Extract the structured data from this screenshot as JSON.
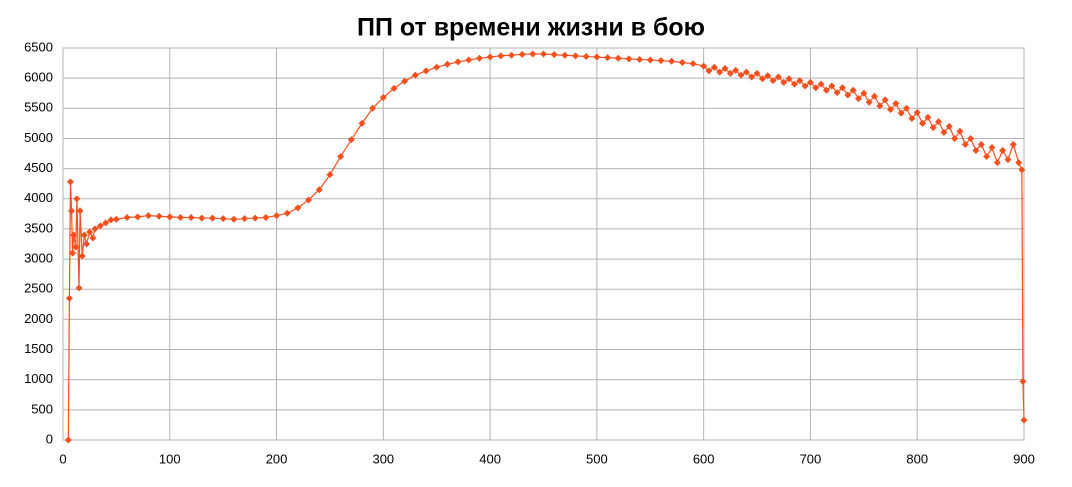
{
  "chart_data": {
    "type": "line",
    "title": "ПП от времени жизни в бою",
    "x": [
      5,
      6,
      7,
      8,
      9,
      10,
      12,
      13,
      15,
      16,
      18,
      20,
      22,
      25,
      28,
      30,
      35,
      40,
      45,
      50,
      60,
      70,
      80,
      90,
      100,
      110,
      120,
      130,
      140,
      150,
      160,
      170,
      180,
      190,
      200,
      210,
      220,
      230,
      240,
      250,
      260,
      270,
      280,
      290,
      300,
      310,
      320,
      330,
      340,
      350,
      360,
      370,
      380,
      390,
      400,
      410,
      420,
      430,
      440,
      450,
      460,
      470,
      480,
      490,
      500,
      510,
      520,
      530,
      540,
      550,
      560,
      570,
      580,
      590,
      600,
      605,
      610,
      615,
      620,
      625,
      630,
      635,
      640,
      645,
      650,
      655,
      660,
      665,
      670,
      675,
      680,
      685,
      690,
      695,
      700,
      705,
      710,
      715,
      720,
      725,
      730,
      735,
      740,
      745,
      750,
      755,
      760,
      765,
      770,
      775,
      780,
      785,
      790,
      795,
      800,
      805,
      810,
      815,
      820,
      825,
      830,
      835,
      840,
      845,
      850,
      855,
      860,
      865,
      870,
      875,
      880,
      885,
      890,
      895,
      898,
      899,
      900
    ],
    "series": [
      {
        "color": "#f5501e",
        "values": [
          0,
          2350,
          4280,
          3800,
          3100,
          3400,
          3200,
          4000,
          2520,
          3800,
          3050,
          3400,
          3250,
          3450,
          3350,
          3500,
          3550,
          3600,
          3650,
          3660,
          3690,
          3700,
          3720,
          3710,
          3700,
          3690,
          3690,
          3680,
          3680,
          3670,
          3660,
          3670,
          3680,
          3690,
          3720,
          3760,
          3850,
          3980,
          4150,
          4400,
          4700,
          4980,
          5250,
          5500,
          5680,
          5830,
          5950,
          6050,
          6120,
          6180,
          6230,
          6270,
          6300,
          6330,
          6350,
          6370,
          6380,
          6395,
          6400,
          6400,
          6390,
          6380,
          6370,
          6360,
          6350,
          6340,
          6330,
          6320,
          6310,
          6300,
          6290,
          6280,
          6260,
          6240,
          6200,
          6120,
          6180,
          6100,
          6160,
          6080,
          6130,
          6050,
          6100,
          6020,
          6080,
          5990,
          6040,
          5960,
          6020,
          5930,
          5990,
          5900,
          5960,
          5870,
          5930,
          5840,
          5900,
          5800,
          5870,
          5760,
          5840,
          5720,
          5800,
          5660,
          5750,
          5600,
          5700,
          5540,
          5640,
          5480,
          5580,
          5420,
          5500,
          5330,
          5430,
          5250,
          5350,
          5180,
          5280,
          5100,
          5200,
          5000,
          5120,
          4900,
          5000,
          4800,
          4900,
          4700,
          4850,
          4600,
          4800,
          4650,
          4900,
          4600,
          4480,
          970,
          330
        ]
      }
    ],
    "xlim": [
      0,
      900
    ],
    "xticks": [
      0,
      100,
      200,
      300,
      400,
      500,
      600,
      700,
      800,
      900
    ],
    "ylim": [
      0,
      6500
    ],
    "yticks": [
      0,
      500,
      1000,
      1500,
      2000,
      2500,
      3000,
      3500,
      4000,
      4500,
      5000,
      5500,
      6000,
      6500
    ],
    "grid": true
  }
}
